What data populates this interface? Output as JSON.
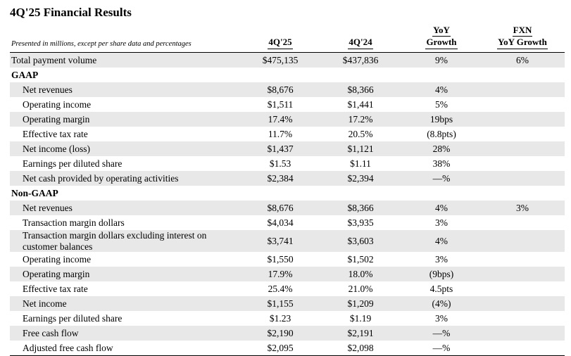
{
  "title": "4Q'25 Financial Results",
  "colors": {
    "row_shade": "#e8e8e8",
    "text": "#000000",
    "rule": "#000000"
  },
  "table": {
    "note": "Presented in millions, except per share data and percentages",
    "columns": [
      {
        "id": "q25",
        "lines": [
          "4Q'25"
        ]
      },
      {
        "id": "q24",
        "lines": [
          "4Q'24"
        ]
      },
      {
        "id": "yoy",
        "lines": [
          "YoY",
          "Growth"
        ]
      },
      {
        "id": "fxn",
        "lines": [
          "FXN",
          "YoY Growth"
        ]
      }
    ],
    "rows": [
      {
        "label": "Total payment volume",
        "indent": false,
        "section": false,
        "shaded": true,
        "values": [
          "$475,135",
          "$437,836",
          "9%",
          "6%"
        ]
      },
      {
        "label": "GAAP",
        "indent": false,
        "section": true,
        "shaded": false,
        "values": [
          "",
          "",
          "",
          ""
        ]
      },
      {
        "label": "Net revenues",
        "indent": true,
        "section": false,
        "shaded": true,
        "values": [
          "$8,676",
          "$8,366",
          "4%",
          ""
        ]
      },
      {
        "label": "Operating income",
        "indent": true,
        "section": false,
        "shaded": false,
        "values": [
          "$1,511",
          "$1,441",
          "5%",
          ""
        ]
      },
      {
        "label": "Operating margin",
        "indent": true,
        "section": false,
        "shaded": true,
        "values": [
          "17.4%",
          "17.2%",
          "19bps",
          ""
        ]
      },
      {
        "label": "Effective tax rate",
        "indent": true,
        "section": false,
        "shaded": false,
        "values": [
          "11.7%",
          "20.5%",
          "(8.8pts)",
          ""
        ]
      },
      {
        "label": "Net income (loss)",
        "indent": true,
        "section": false,
        "shaded": true,
        "values": [
          "$1,437",
          "$1,121",
          "28%",
          ""
        ]
      },
      {
        "label": "Earnings per diluted share",
        "indent": true,
        "section": false,
        "shaded": false,
        "values": [
          "$1.53",
          "$1.11",
          "38%",
          ""
        ]
      },
      {
        "label": "Net cash provided by operating activities",
        "indent": true,
        "section": false,
        "shaded": true,
        "values": [
          "$2,384",
          "$2,394",
          "—%",
          ""
        ]
      },
      {
        "label": "Non-GAAP",
        "indent": false,
        "section": true,
        "shaded": false,
        "values": [
          "",
          "",
          "",
          ""
        ]
      },
      {
        "label": "Net revenues",
        "indent": true,
        "section": false,
        "shaded": true,
        "values": [
          "$8,676",
          "$8,366",
          "4%",
          "3%"
        ]
      },
      {
        "label": "Transaction margin dollars",
        "indent": true,
        "section": false,
        "shaded": false,
        "values": [
          "$4,034",
          "$3,935",
          "3%",
          ""
        ]
      },
      {
        "label": "Transaction margin dollars excluding interest on customer balances",
        "indent": true,
        "section": false,
        "shaded": true,
        "values": [
          "$3,741",
          "$3,603",
          "4%",
          ""
        ]
      },
      {
        "label": "Operating income",
        "indent": true,
        "section": false,
        "shaded": false,
        "values": [
          "$1,550",
          "$1,502",
          "3%",
          ""
        ]
      },
      {
        "label": "Operating margin",
        "indent": true,
        "section": false,
        "shaded": true,
        "values": [
          "17.9%",
          "18.0%",
          "(9bps)",
          ""
        ]
      },
      {
        "label": "Effective tax rate",
        "indent": true,
        "section": false,
        "shaded": false,
        "values": [
          "25.4%",
          "21.0%",
          "4.5pts",
          ""
        ]
      },
      {
        "label": "Net income",
        "indent": true,
        "section": false,
        "shaded": true,
        "values": [
          "$1,155",
          "$1,209",
          "(4%)",
          ""
        ]
      },
      {
        "label": "Earnings per diluted share",
        "indent": true,
        "section": false,
        "shaded": false,
        "values": [
          "$1.23",
          "$1.19",
          "3%",
          ""
        ]
      },
      {
        "label": "Free cash flow",
        "indent": true,
        "section": false,
        "shaded": true,
        "values": [
          "$2,190",
          "$2,191",
          "—%",
          ""
        ]
      },
      {
        "label": "Adjusted free cash flow",
        "indent": true,
        "section": false,
        "shaded": false,
        "values": [
          "$2,095",
          "$2,098",
          "—%",
          ""
        ]
      }
    ]
  }
}
